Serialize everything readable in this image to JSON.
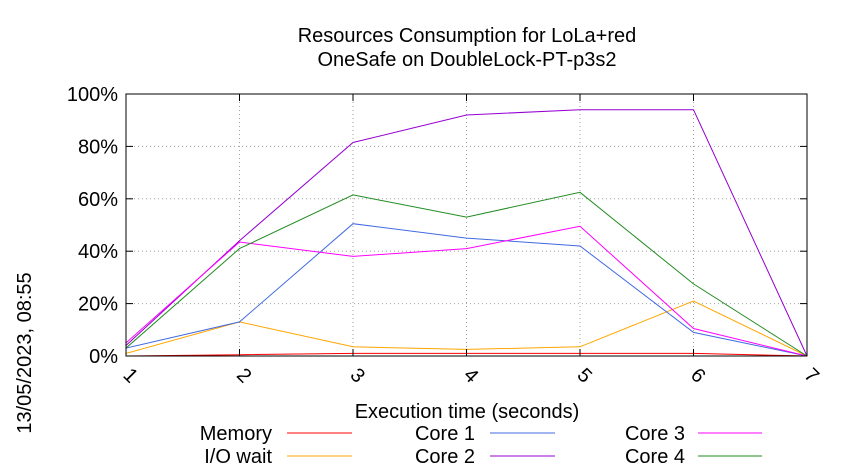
{
  "chart_data": {
    "type": "line",
    "title": "Resources Consumption for LoLa+red",
    "subtitle": "OneSafe on DoubleLock-PT-p3s2",
    "xlabel": "Execution time (seconds)",
    "ylabel": "",
    "side_label": "13/05/2023, 08:55",
    "x": [
      1,
      2,
      3,
      4,
      5,
      6,
      7
    ],
    "xlim": [
      1,
      7
    ],
    "ylim": [
      0,
      100
    ],
    "x_ticks": [
      "1",
      "2",
      "3",
      "4",
      "5",
      "6",
      "7"
    ],
    "y_ticks": [
      "0%",
      "20%",
      "40%",
      "60%",
      "80%",
      "100%"
    ],
    "y_tick_values": [
      0,
      20,
      40,
      60,
      80,
      100
    ],
    "grid": true,
    "legend_position": "bottom",
    "series": [
      {
        "name": "Memory",
        "color": "#ff0000",
        "values": [
          0,
          0.5,
          1,
          1,
          1,
          1,
          0
        ]
      },
      {
        "name": "I/O wait",
        "color": "#ffa500",
        "values": [
          1,
          13,
          3.5,
          2.5,
          3.5,
          21,
          0
        ]
      },
      {
        "name": "Core 1",
        "color": "#4169e1",
        "values": [
          3,
          13,
          50.5,
          45,
          42,
          9,
          0
        ]
      },
      {
        "name": "Core 2",
        "color": "#9400d3",
        "values": [
          4,
          44,
          81.5,
          92,
          94,
          94,
          0
        ]
      },
      {
        "name": "Core 3",
        "color": "#ff00ff",
        "values": [
          5,
          43.5,
          38,
          41,
          49.5,
          10.5,
          0
        ]
      },
      {
        "name": "Core 4",
        "color": "#228b22",
        "values": [
          3,
          41,
          61.5,
          53,
          62.5,
          27.5,
          0
        ]
      }
    ]
  }
}
